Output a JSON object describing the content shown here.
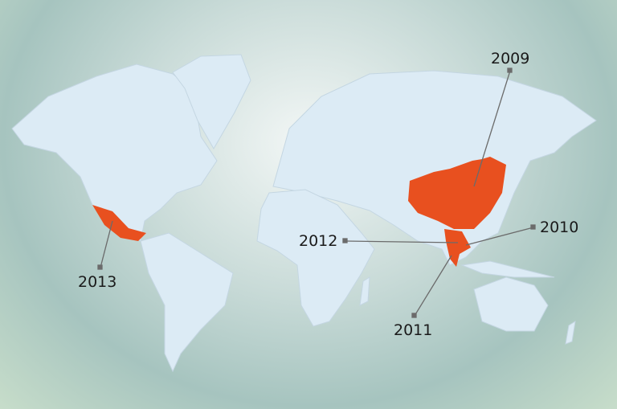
{
  "colors": {
    "land": "#dcebf5",
    "highlight": "#e8501f",
    "leader": "#6b6b6b"
  },
  "markers": [
    {
      "year": "2009",
      "country": "China"
    },
    {
      "year": "2010",
      "country": "Vietnam"
    },
    {
      "year": "2011",
      "country": "Malaysia"
    },
    {
      "year": "2012",
      "country": "Thailand"
    },
    {
      "year": "2013",
      "country": "Mexico"
    }
  ]
}
